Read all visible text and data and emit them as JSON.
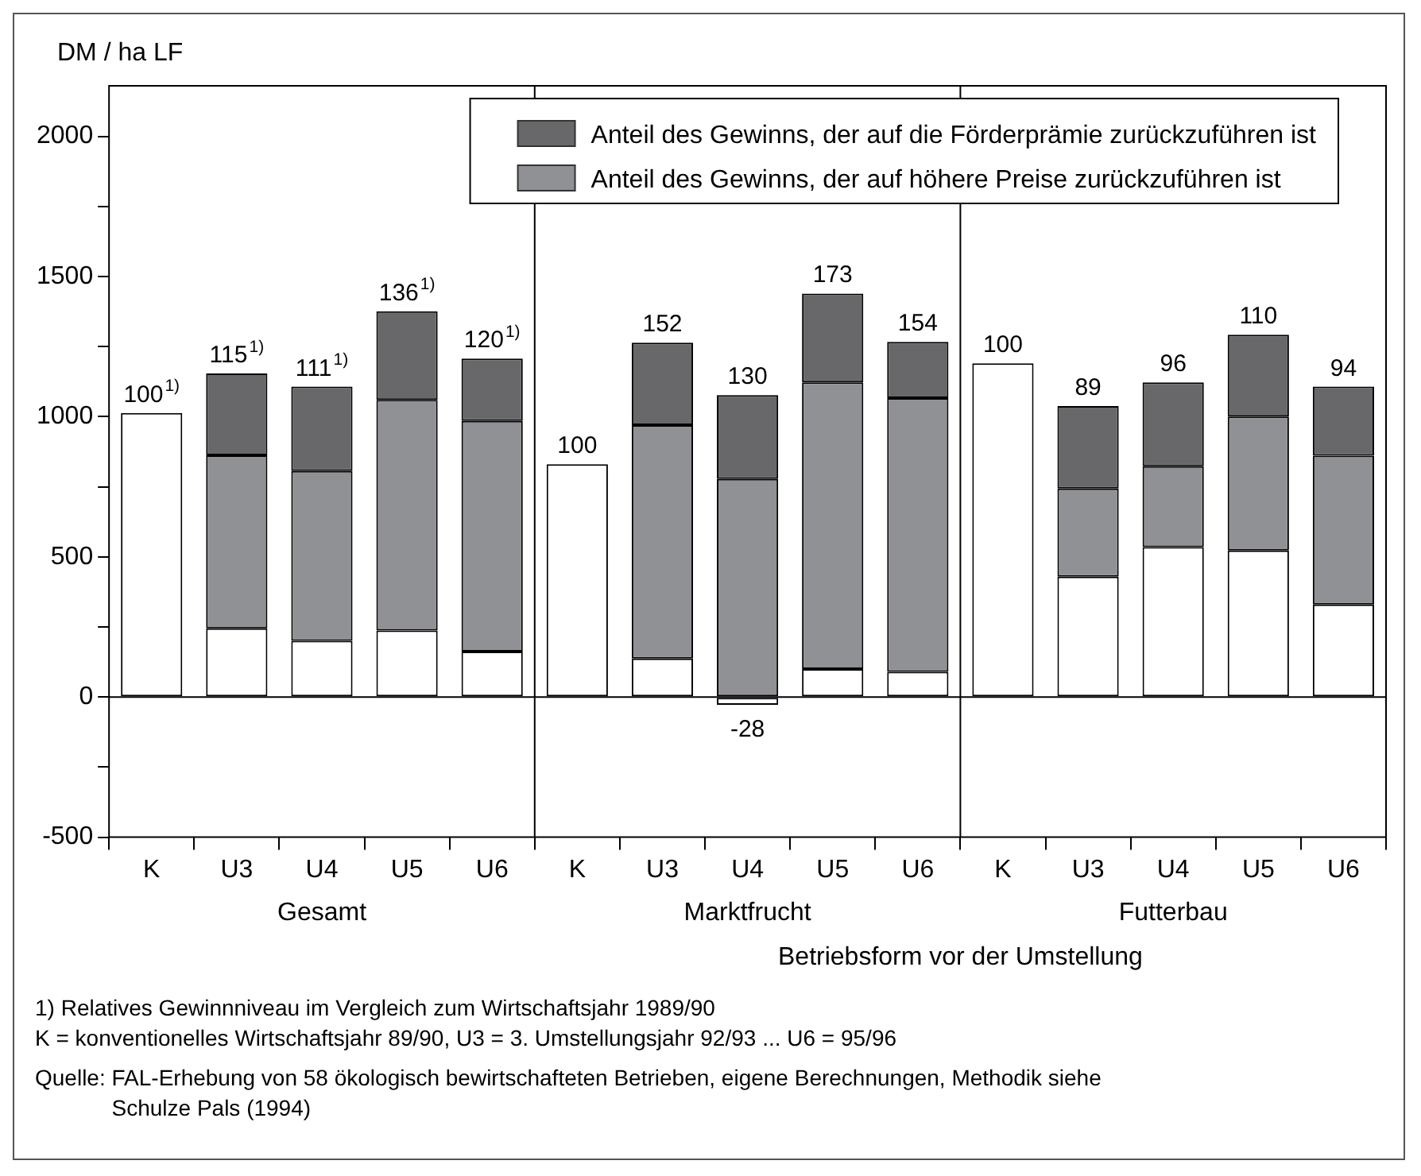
{
  "chart_data": {
    "type": "bar",
    "stacked": true,
    "ylabel": "DM / ha LF",
    "xlabel": "Betriebsform vor der Umstellung",
    "categories": [
      "K",
      "U3",
      "U4",
      "U5",
      "U6",
      "K",
      "U3",
      "U4",
      "U5",
      "U6",
      "K",
      "U3",
      "U4",
      "U5",
      "U6"
    ],
    "series": [
      {
        "color": "#ffffff",
        "values": [
          1013,
          245,
          200,
          237,
          162,
          830,
          137,
          -28,
          100,
          90,
          1190,
          429,
          535,
          523,
          330
        ],
        "value_labels": [
          null,
          null,
          null,
          null,
          null,
          null,
          null,
          "-28",
          null,
          null,
          null,
          null,
          null,
          null,
          null
        ]
      },
      {
        "name": "Anteil des Gewinns, der auf höhere Preise zurückzuführen ist",
        "color": "#909194",
        "values": [
          null,
          617,
          606,
          823,
          823,
          null,
          833,
          778,
          1022,
          976,
          null,
          315,
          288,
          477,
          531
        ]
      },
      {
        "name": "Anteil des Gewinns, der auf die Förderprämie zurückzuführen ist",
        "color": "#68686a",
        "values": [
          null,
          292,
          301,
          316,
          222,
          null,
          294,
          299,
          317,
          201,
          null,
          294,
          299,
          292,
          246
        ]
      }
    ],
    "value_labels": [
      "100$^{1)}$",
      "115$^{1)}$",
      "111$^{1)}$",
      "136$^{1)}$",
      "120$^{1)}$",
      "100",
      "152",
      "130",
      "173",
      "154",
      "100",
      "89",
      "96",
      "110",
      "94"
    ],
    "ylim": [
      -500,
      2180
    ],
    "yticks": [
      -500,
      {
        "value": -250,
        "label": null
      },
      0,
      {
        "value": 250,
        "label": null
      },
      500,
      {
        "value": 750,
        "label": null
      },
      1000,
      {
        "value": 1250,
        "label": null
      },
      1500,
      {
        "value": 1750,
        "label": null
      },
      2000
    ],
    "grid": false,
    "legend": "top right",
    "ref_lines": [
      {
        "axis": "y",
        "value": 0
      }
    ],
    "annotations": [
      "Gesamt",
      "Marktfrucht",
      "Futterbau",
      "1) Relatives Gewinnniveau im Vergleich zum Wirtschaftsjahr 1989/90",
      "K = konventionelles Wirtschaftsjahr 89/90, U3 = 3. Umstellungsjahr 92/93 ... U6 = 95/96",
      "Quelle: FAL-Erhebung von 58 ökologisch bewirtschafteten Betrieben, eigene Berechnungen, Methodik siehe Schulze Pals (1994)"
    ]
  }
}
